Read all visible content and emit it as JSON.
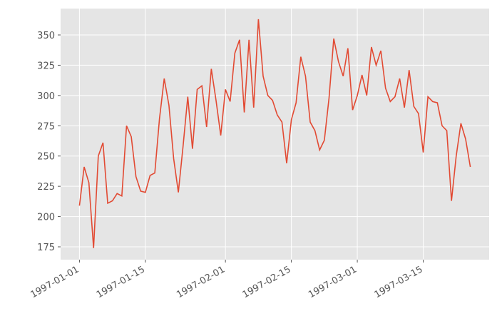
{
  "chart_data": {
    "type": "line",
    "x": [
      "1997-01-01",
      "1997-01-02",
      "1997-01-03",
      "1997-01-04",
      "1997-01-05",
      "1997-01-06",
      "1997-01-07",
      "1997-01-08",
      "1997-01-09",
      "1997-01-10",
      "1997-01-11",
      "1997-01-12",
      "1997-01-13",
      "1997-01-14",
      "1997-01-15",
      "1997-01-16",
      "1997-01-17",
      "1997-01-18",
      "1997-01-19",
      "1997-01-20",
      "1997-01-21",
      "1997-01-22",
      "1997-01-23",
      "1997-01-24",
      "1997-01-25",
      "1997-01-26",
      "1997-01-27",
      "1997-01-28",
      "1997-01-29",
      "1997-01-30",
      "1997-01-31",
      "1997-02-01",
      "1997-02-02",
      "1997-02-03",
      "1997-02-04",
      "1997-02-05",
      "1997-02-06",
      "1997-02-07",
      "1997-02-08",
      "1997-02-09",
      "1997-02-10",
      "1997-02-11",
      "1997-02-12",
      "1997-02-13",
      "1997-02-14",
      "1997-02-15",
      "1997-02-16",
      "1997-02-17",
      "1997-02-18",
      "1997-02-19",
      "1997-02-20",
      "1997-02-21",
      "1997-02-22",
      "1997-02-23",
      "1997-02-24",
      "1997-02-25",
      "1997-02-26",
      "1997-02-27",
      "1997-02-28",
      "1997-03-01",
      "1997-03-02",
      "1997-03-03",
      "1997-03-04",
      "1997-03-05",
      "1997-03-06",
      "1997-03-07",
      "1997-03-08",
      "1997-03-09",
      "1997-03-10",
      "1997-03-11",
      "1997-03-12",
      "1997-03-13",
      "1997-03-14",
      "1997-03-15",
      "1997-03-16",
      "1997-03-17",
      "1997-03-18",
      "1997-03-19",
      "1997-03-20",
      "1997-03-21",
      "1997-03-22",
      "1997-03-23",
      "1997-03-24",
      "1997-03-25"
    ],
    "values": [
      209,
      241,
      228,
      174,
      250,
      261,
      211,
      213,
      219,
      217,
      275,
      266,
      233,
      221,
      220,
      234,
      236,
      281,
      314,
      292,
      248,
      220,
      258,
      299,
      256,
      305,
      308,
      274,
      322,
      296,
      267,
      305,
      295,
      335,
      346,
      286,
      346,
      290,
      363,
      316,
      300,
      296,
      284,
      278,
      244,
      280,
      294,
      332,
      316,
      278,
      271,
      255,
      263,
      298,
      347,
      328,
      316,
      339,
      288,
      300,
      317,
      300,
      340,
      325,
      337,
      306,
      295,
      299,
      314,
      290,
      321,
      291,
      285,
      253,
      299,
      295,
      294,
      275,
      271,
      213,
      250,
      277,
      264,
      241
    ],
    "color": "#E24A33",
    "xlim": [
      "1996-12-28",
      "1997-03-29"
    ],
    "xticks": [
      "1997-01-01",
      "1997-01-15",
      "1997-02-01",
      "1997-02-15",
      "1997-03-01",
      "1997-03-15"
    ],
    "ylim": [
      164.4,
      371.8
    ],
    "yticks": [
      175,
      200,
      225,
      250,
      275,
      300,
      325,
      350
    ],
    "grid": true
  }
}
